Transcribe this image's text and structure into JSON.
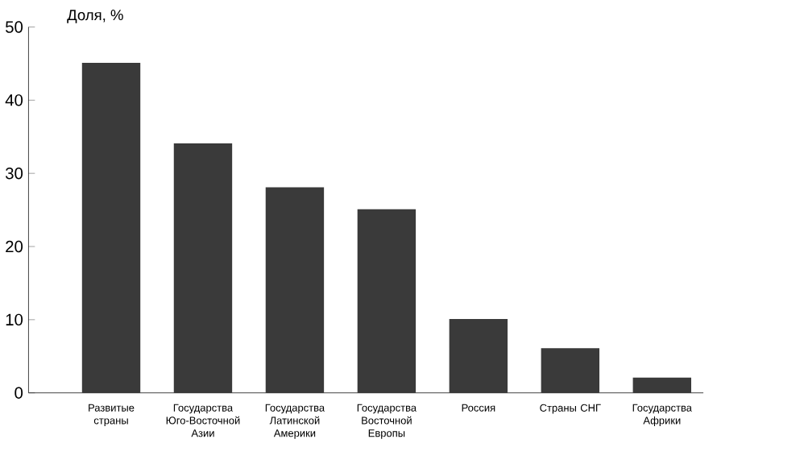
{
  "chart_data": {
    "type": "bar",
    "ylabel": "Доля, %",
    "categories": [
      "Развитые страны",
      "Государства Юго-Восточной Азии",
      "Государства Латинской Америки",
      "Государства Восточной Европы",
      "Россия",
      "Страны СНГ",
      "Государства Африки"
    ],
    "values": [
      45,
      34,
      28,
      25,
      10,
      6,
      2
    ],
    "color": "#3a3a3a",
    "ylim": [
      0,
      50
    ],
    "yticks": [
      0,
      10,
      20,
      30,
      40,
      50
    ],
    "grid": false
  }
}
